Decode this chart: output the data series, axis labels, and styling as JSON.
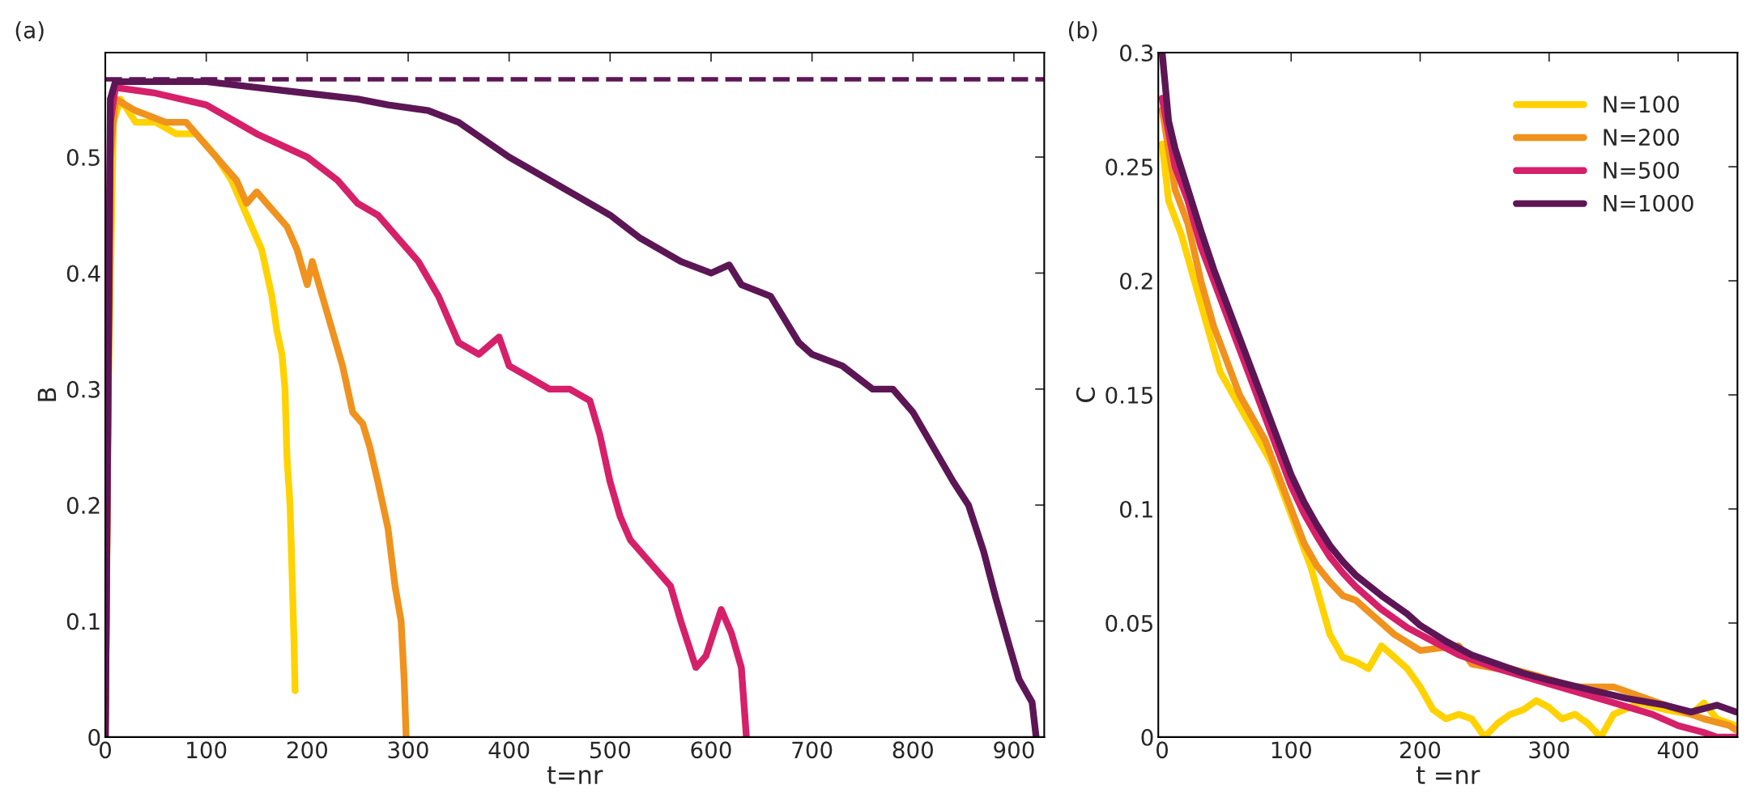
{
  "chart_data": [
    {
      "type": "line",
      "title": "(a)",
      "xlabel": "t=nr",
      "ylabel": "B",
      "xlim": [
        0,
        930
      ],
      "ylim": [
        0,
        0.59
      ],
      "xticks": [
        0,
        100,
        200,
        300,
        400,
        500,
        600,
        700,
        800,
        900
      ],
      "yticks": [
        0,
        0.1,
        0.2,
        0.3,
        0.4,
        0.5
      ],
      "grid": false,
      "legend": false,
      "line_style": "solid",
      "marker": "none",
      "ref_lines": [
        {
          "axis": "y",
          "value": 0.567,
          "color": "#5c1655",
          "line_style": "dashed"
        }
      ],
      "series": [
        {
          "color": "#ffd200",
          "x": [
            0,
            3,
            8,
            15,
            30,
            50,
            70,
            90,
            110,
            125,
            135,
            145,
            155,
            165,
            170,
            175,
            178,
            180,
            183,
            185,
            187,
            188
          ],
          "values": [
            0,
            0.3,
            0.53,
            0.55,
            0.53,
            0.53,
            0.52,
            0.52,
            0.5,
            0.48,
            0.46,
            0.44,
            0.42,
            0.38,
            0.35,
            0.33,
            0.3,
            0.24,
            0.2,
            0.14,
            0.08,
            0.04
          ]
        },
        {
          "color": "#f0921e",
          "x": [
            0,
            5,
            10,
            30,
            60,
            80,
            100,
            120,
            130,
            140,
            150,
            160,
            180,
            190,
            200,
            205,
            215,
            225,
            235,
            245,
            255,
            262,
            270,
            280,
            287,
            293,
            296,
            298
          ],
          "values": [
            0,
            0.5,
            0.55,
            0.54,
            0.53,
            0.53,
            0.51,
            0.49,
            0.48,
            0.46,
            0.47,
            0.46,
            0.44,
            0.42,
            0.39,
            0.41,
            0.38,
            0.35,
            0.32,
            0.28,
            0.27,
            0.25,
            0.22,
            0.18,
            0.13,
            0.1,
            0.05,
            0
          ]
        },
        {
          "color": "#d6206a",
          "x": [
            0,
            5,
            10,
            50,
            100,
            150,
            200,
            230,
            250,
            270,
            290,
            310,
            330,
            340,
            350,
            370,
            390,
            400,
            420,
            440,
            460,
            480,
            490,
            500,
            510,
            520,
            540,
            560,
            570,
            585,
            595,
            610,
            620,
            630,
            635
          ],
          "values": [
            0,
            0.53,
            0.56,
            0.555,
            0.545,
            0.52,
            0.5,
            0.48,
            0.46,
            0.45,
            0.43,
            0.41,
            0.38,
            0.36,
            0.34,
            0.33,
            0.345,
            0.32,
            0.31,
            0.3,
            0.3,
            0.29,
            0.26,
            0.22,
            0.19,
            0.17,
            0.15,
            0.13,
            0.1,
            0.06,
            0.07,
            0.11,
            0.09,
            0.06,
            0
          ]
        },
        {
          "color": "#5c1655",
          "x": [
            0,
            5,
            10,
            50,
            100,
            150,
            200,
            250,
            280,
            320,
            350,
            400,
            450,
            500,
            530,
            570,
            600,
            618,
            630,
            659,
            687,
            700,
            730,
            760,
            780,
            800,
            820,
            840,
            855,
            870,
            882,
            895,
            905,
            918,
            922
          ],
          "values": [
            0,
            0.55,
            0.565,
            0.565,
            0.565,
            0.56,
            0.555,
            0.55,
            0.545,
            0.54,
            0.53,
            0.5,
            0.475,
            0.45,
            0.43,
            0.41,
            0.4,
            0.407,
            0.39,
            0.38,
            0.34,
            0.33,
            0.32,
            0.3,
            0.3,
            0.28,
            0.25,
            0.22,
            0.2,
            0.16,
            0.12,
            0.08,
            0.05,
            0.03,
            0
          ]
        }
      ]
    },
    {
      "type": "line",
      "title": "(b)",
      "xlabel": "t =nr",
      "ylabel": "C",
      "xlim": [
        -3,
        446
      ],
      "ylim": [
        0,
        0.3
      ],
      "xticks": [
        0,
        100,
        200,
        300,
        400
      ],
      "yticks": [
        0,
        0.05,
        0.1,
        0.15,
        0.2,
        0.25,
        0.3
      ],
      "grid": false,
      "legend": "top right",
      "line_style": "solid",
      "marker": "none",
      "series": [
        {
          "name": "N=100",
          "color": "#ffd200",
          "x": [
            0,
            5,
            15,
            25,
            35,
            45,
            55,
            65,
            75,
            85,
            95,
            105,
            115,
            120,
            130,
            140,
            150,
            160,
            170,
            180,
            190,
            200,
            210,
            220,
            230,
            240,
            250,
            260,
            270,
            280,
            290,
            300,
            310,
            320,
            330,
            340,
            350,
            370,
            390,
            410,
            420,
            430,
            445
          ],
          "values": [
            0.26,
            0.235,
            0.22,
            0.2,
            0.18,
            0.16,
            0.15,
            0.14,
            0.13,
            0.12,
            0.105,
            0.09,
            0.075,
            0.065,
            0.045,
            0.035,
            0.033,
            0.03,
            0.04,
            0.035,
            0.03,
            0.022,
            0.012,
            0.008,
            0.01,
            0.008,
            0,
            0.006,
            0.01,
            0.012,
            0.016,
            0.013,
            0.008,
            0.01,
            0.006,
            0,
            0.01,
            0.015,
            0.012,
            0.01,
            0.015,
            0.008,
            0.005
          ]
        },
        {
          "name": "N=200",
          "color": "#f0921e",
          "x": [
            0,
            10,
            20,
            30,
            40,
            50,
            60,
            70,
            80,
            90,
            100,
            110,
            120,
            130,
            140,
            150,
            160,
            170,
            180,
            200,
            230,
            240,
            260,
            270,
            290,
            320,
            350,
            370,
            400,
            420,
            440,
            445
          ],
          "values": [
            0.275,
            0.24,
            0.225,
            0.2,
            0.18,
            0.165,
            0.15,
            0.14,
            0.13,
            0.115,
            0.1,
            0.085,
            0.075,
            0.068,
            0.062,
            0.06,
            0.055,
            0.05,
            0.045,
            0.038,
            0.04,
            0.032,
            0.03,
            0.03,
            0.027,
            0.022,
            0.022,
            0.018,
            0.012,
            0.008,
            0.005,
            0.003
          ]
        },
        {
          "name": "N=500",
          "color": "#d6206a",
          "x": [
            0,
            10,
            20,
            30,
            40,
            50,
            60,
            70,
            80,
            90,
            100,
            110,
            120,
            130,
            140,
            150,
            170,
            190,
            210,
            230,
            260,
            290,
            320,
            350,
            380,
            400,
            420,
            430,
            445
          ],
          "values": [
            0.28,
            0.25,
            0.235,
            0.215,
            0.2,
            0.185,
            0.17,
            0.155,
            0.14,
            0.125,
            0.11,
            0.098,
            0.088,
            0.079,
            0.072,
            0.066,
            0.056,
            0.048,
            0.042,
            0.036,
            0.03,
            0.025,
            0.02,
            0.015,
            0.01,
            0.005,
            0.002,
            0,
            0
          ]
        },
        {
          "name": "N=1000",
          "color": "#5c1655",
          "x": [
            0,
            5,
            10,
            20,
            30,
            40,
            50,
            60,
            70,
            80,
            90,
            100,
            110,
            120,
            130,
            140,
            150,
            170,
            190,
            200,
            220,
            240,
            260,
            280,
            300,
            330,
            360,
            390,
            410,
            430,
            445
          ],
          "values": [
            0.3,
            0.27,
            0.258,
            0.24,
            0.222,
            0.205,
            0.19,
            0.175,
            0.16,
            0.145,
            0.13,
            0.115,
            0.103,
            0.093,
            0.084,
            0.077,
            0.071,
            0.062,
            0.054,
            0.049,
            0.042,
            0.036,
            0.032,
            0.028,
            0.025,
            0.021,
            0.017,
            0.014,
            0.011,
            0.014,
            0.011
          ]
        }
      ]
    }
  ]
}
